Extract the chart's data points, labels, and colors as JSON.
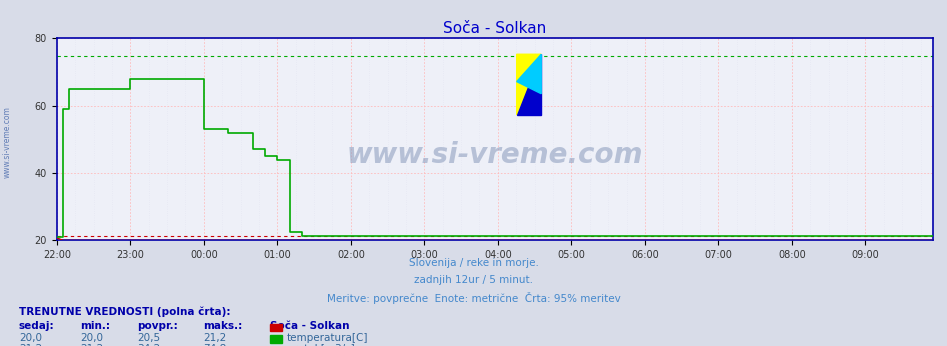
{
  "title": "Soča - Solkan",
  "title_color": "#0000cc",
  "bg_color": "#d8dce8",
  "plot_bg_color": "#eef0f8",
  "ylabel_left": "",
  "xlim_min": 0,
  "xlim_max": 143,
  "ylim_min": 20,
  "ylim_max": 80,
  "yticks": [
    20,
    40,
    60,
    80
  ],
  "xtick_labels": [
    "22:00",
    "23:00",
    "00:00",
    "01:00",
    "02:00",
    "03:00",
    "04:00",
    "05:00",
    "06:00",
    "07:00",
    "08:00",
    "09:00"
  ],
  "border_color": "#0000aa",
  "watermark": "www.si-vreme.com",
  "subtitle1": "Slovenija / reke in morje.",
  "subtitle2": "zadnjih 12ur / 5 minut.",
  "subtitle3": "Meritve: povprečne  Enote: metrične  Črta: 95% meritev",
  "subtitle_color": "#4488cc",
  "left_label": "www.si-vreme.com",
  "dashed_red_val": 21.2,
  "dashed_green_val": 74.8,
  "temp_color": "#cc0000",
  "flow_color": "#00aa00",
  "n_points": 144,
  "table_bold_color": "#0000aa",
  "table_data_color": "#336699"
}
